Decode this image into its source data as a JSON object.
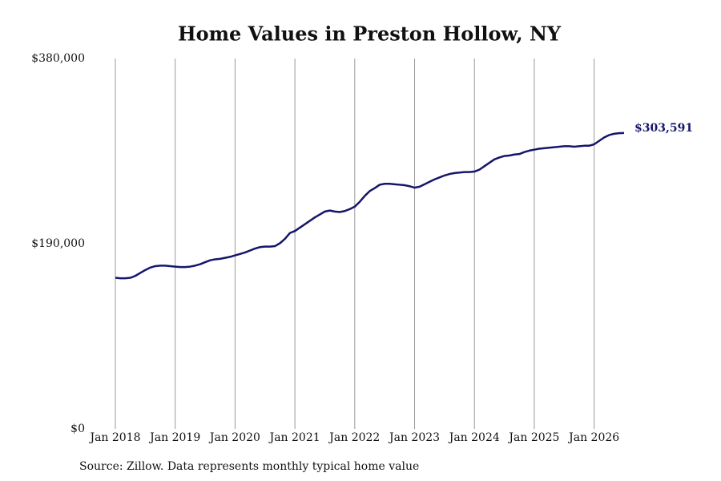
{
  "chart_data": {
    "type": "line",
    "title": "Home Values in Preston Hollow, NY",
    "source": "Source: Zillow. Data represents monthly typical home value",
    "color": "#15166b",
    "grid": true,
    "x": [
      "2018-01",
      "2018-02",
      "2018-03",
      "2018-04",
      "2018-05",
      "2018-06",
      "2018-07",
      "2018-08",
      "2018-09",
      "2018-10",
      "2018-11",
      "2018-12",
      "2019-01",
      "2019-02",
      "2019-03",
      "2019-04",
      "2019-05",
      "2019-06",
      "2019-07",
      "2019-08",
      "2019-09",
      "2019-10",
      "2019-11",
      "2019-12",
      "2020-01",
      "2020-02",
      "2020-03",
      "2020-04",
      "2020-05",
      "2020-06",
      "2020-07",
      "2020-08",
      "2020-09",
      "2020-10",
      "2020-11",
      "2020-12",
      "2021-01",
      "2021-02",
      "2021-03",
      "2021-04",
      "2021-05",
      "2021-06",
      "2021-07",
      "2021-08",
      "2021-09",
      "2021-10",
      "2021-11",
      "2021-12",
      "2022-01",
      "2022-02",
      "2022-03",
      "2022-04",
      "2022-05",
      "2022-06",
      "2022-07",
      "2022-08",
      "2022-09",
      "2022-10",
      "2022-11",
      "2022-12",
      "2023-01",
      "2023-02",
      "2023-03",
      "2023-04",
      "2023-05",
      "2023-06",
      "2023-07",
      "2023-08",
      "2023-09",
      "2023-10",
      "2023-11",
      "2023-12",
      "2024-01",
      "2024-02",
      "2024-03",
      "2024-04",
      "2024-05",
      "2024-06",
      "2024-07",
      "2024-08",
      "2024-09",
      "2024-10",
      "2024-11",
      "2024-12",
      "2025-01",
      "2025-02",
      "2025-03",
      "2025-04",
      "2025-05",
      "2025-06",
      "2025-07",
      "2025-08",
      "2025-09",
      "2025-10",
      "2025-11",
      "2025-12",
      "2026-01",
      "2026-02",
      "2026-03",
      "2026-04",
      "2026-05",
      "2026-06",
      "2026-07"
    ],
    "values": [
      155000,
      154500,
      154500,
      155000,
      157000,
      160000,
      163000,
      165500,
      167000,
      167500,
      167500,
      167000,
      166500,
      166000,
      166000,
      166500,
      167500,
      169000,
      171000,
      173000,
      174000,
      174500,
      175500,
      176500,
      178000,
      179500,
      181000,
      183000,
      185000,
      186500,
      187000,
      187000,
      187500,
      190500,
      195000,
      201000,
      203000,
      206500,
      210000,
      213500,
      217000,
      220000,
      223000,
      224000,
      223000,
      222500,
      223500,
      225500,
      228000,
      233000,
      239000,
      244000,
      247000,
      250500,
      251500,
      251500,
      251000,
      250500,
      250000,
      249000,
      247500,
      248500,
      251000,
      253500,
      256000,
      258000,
      260000,
      261500,
      262500,
      263000,
      263500,
      263500,
      264000,
      266000,
      269500,
      273000,
      276500,
      278500,
      280000,
      280500,
      281500,
      282000,
      284000,
      285500,
      286500,
      287500,
      288000,
      288500,
      289000,
      289500,
      290000,
      290000,
      289500,
      290000,
      290500,
      290500,
      292000,
      295500,
      299000,
      301500,
      302800,
      303400,
      303591
    ],
    "value_labels": [
      null,
      null,
      null,
      null,
      null,
      null,
      null,
      null,
      null,
      null,
      null,
      null,
      null,
      null,
      null,
      null,
      null,
      null,
      null,
      null,
      null,
      null,
      null,
      null,
      null,
      null,
      null,
      null,
      null,
      null,
      null,
      null,
      null,
      null,
      null,
      null,
      null,
      null,
      null,
      null,
      null,
      null,
      null,
      null,
      null,
      null,
      null,
      null,
      null,
      null,
      null,
      null,
      null,
      null,
      null,
      null,
      null,
      null,
      null,
      null,
      null,
      null,
      null,
      null,
      null,
      null,
      null,
      null,
      null,
      null,
      null,
      null,
      null,
      null,
      null,
      null,
      null,
      null,
      null,
      null,
      null,
      null,
      null,
      null,
      null,
      null,
      null,
      null,
      null,
      null,
      null,
      null,
      null,
      null,
      null,
      null,
      null,
      null,
      null,
      null,
      null,
      null,
      "$303,591"
    ],
    "xlim": [
      "2018-01",
      "2026-07"
    ],
    "xticks": [
      {
        "value": "2018-01",
        "label": "Jan 2018"
      },
      {
        "value": "2019-01",
        "label": "Jan 2019"
      },
      {
        "value": "2020-01",
        "label": "Jan 2020"
      },
      {
        "value": "2021-01",
        "label": "Jan 2021"
      },
      {
        "value": "2022-01",
        "label": "Jan 2022"
      },
      {
        "value": "2023-01",
        "label": "Jan 2023"
      },
      {
        "value": "2024-01",
        "label": "Jan 2024"
      },
      {
        "value": "2025-01",
        "label": "Jan 2025"
      },
      {
        "value": "2026-01",
        "label": "Jan 2026"
      }
    ],
    "ylim": [
      0,
      380000
    ],
    "yticks": [
      {
        "value": 0,
        "label": "$0"
      },
      {
        "value": 190000,
        "label": "$190,000"
      },
      {
        "value": 380000,
        "label": "$380,000"
      }
    ]
  }
}
